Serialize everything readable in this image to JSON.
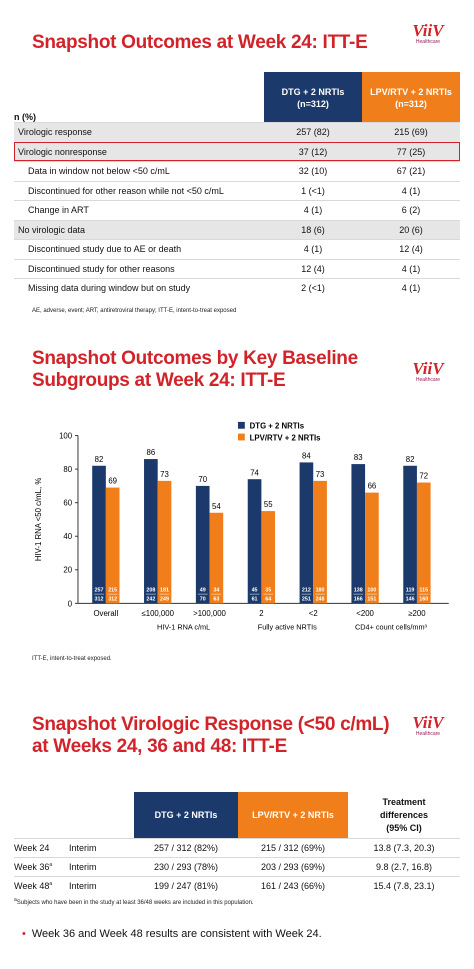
{
  "logo": {
    "mark": "ViiV",
    "sub": "Healthcare"
  },
  "slide1": {
    "title": "Snapshot Outcomes at Week 24: ITT-E",
    "n_label": "n (%)",
    "headers": {
      "dtg": "DTG + 2 NRTIs",
      "dtg_n": "(n=312)",
      "lpv": "LPV/RTV + 2 NRTIs",
      "lpv_n": "(n=312)"
    },
    "rows": [
      {
        "label": "Virologic response",
        "dtg": "257 (82)",
        "lpv": "215 (69)",
        "shade": true,
        "indent": false,
        "highlight": false
      },
      {
        "label": "Virologic nonresponse",
        "dtg": "37 (12)",
        "lpv": "77 (25)",
        "shade": true,
        "indent": false,
        "highlight": true
      },
      {
        "label": "Data in window not below <50 c/mL",
        "dtg": "32 (10)",
        "lpv": "67 (21)",
        "shade": false,
        "indent": true,
        "highlight": false
      },
      {
        "label": "Discontinued for other reason while not <50 c/mL",
        "dtg": "1 (<1)",
        "lpv": "4 (1)",
        "shade": false,
        "indent": true,
        "highlight": false
      },
      {
        "label": "Change in ART",
        "dtg": "4 (1)",
        "lpv": "6 (2)",
        "shade": false,
        "indent": true,
        "highlight": false
      },
      {
        "label": "No virologic data",
        "dtg": "18 (6)",
        "lpv": "20 (6)",
        "shade": true,
        "indent": false,
        "highlight": false
      },
      {
        "label": "Discontinued study due to AE or death",
        "dtg": "4 (1)",
        "lpv": "12 (4)",
        "shade": false,
        "indent": true,
        "highlight": false
      },
      {
        "label": "Discontinued study for other reasons",
        "dtg": "12 (4)",
        "lpv": "4 (1)",
        "shade": false,
        "indent": true,
        "highlight": false
      },
      {
        "label": "Missing data during window but on study",
        "dtg": "2 (<1)",
        "lpv": "4 (1)",
        "shade": false,
        "indent": true,
        "highlight": false
      }
    ],
    "footnote": "AE, adverse, event; ART, antiretroviral therapy; ITT-E, intent-to-treat exposed"
  },
  "slide2": {
    "title_line1": "Snapshot Outcomes by Key Baseline",
    "title_line2": "Subgroups at Week 24: ITT-E",
    "footnote": "ITT-E, intent-to-treat exposed."
  },
  "chart_data": {
    "type": "bar",
    "ylabel": "HIV-1 RNA <50 c/mL, %",
    "ylim": [
      0,
      100
    ],
    "yticks": [
      0,
      20,
      40,
      60,
      80,
      100
    ],
    "categories": [
      "Overall",
      "≤100,000",
      ">100,000",
      "2",
      "<2",
      "<200",
      "≥200"
    ],
    "groups": [
      {
        "label": "HIV-1 RNA c/mL",
        "from": 1,
        "to": 2
      },
      {
        "label": "Fully active NRTIs",
        "from": 3,
        "to": 4
      },
      {
        "label": "CD4+ count cells/mm³",
        "from": 5,
        "to": 6
      }
    ],
    "series": [
      {
        "name": "DTG + 2 NRTIs",
        "color": "#1b3a6b",
        "values": [
          82,
          86,
          70,
          74,
          84,
          83,
          82
        ],
        "fractions": [
          [
            "257",
            "312"
          ],
          [
            "208",
            "242"
          ],
          [
            "49",
            "70"
          ],
          [
            "45",
            "61"
          ],
          [
            "212",
            "251"
          ],
          [
            "138",
            "166"
          ],
          [
            "119",
            "146"
          ]
        ]
      },
      {
        "name": "LPV/RTV + 2 NRTIs",
        "color": "#f07f1b",
        "values": [
          69,
          73,
          54,
          55,
          73,
          66,
          72
        ],
        "fractions": [
          [
            "215",
            "312"
          ],
          [
            "181",
            "249"
          ],
          [
            "34",
            "63"
          ],
          [
            "35",
            "64"
          ],
          [
            "180",
            "248"
          ],
          [
            "100",
            "151"
          ],
          [
            "115",
            "160"
          ]
        ]
      }
    ],
    "legend": "top-right"
  },
  "slide3": {
    "title_line1": "Snapshot Virologic Response (<50 c/mL)",
    "title_line2": "at Weeks 24, 36 and 48: ITT-E",
    "headers": {
      "dtg": "DTG + 2 NRTIs",
      "lpv": "LPV/RTV + 2 NRTIs",
      "diff1": "Treatment",
      "diff2": "differences",
      "diff3": "(95% CI)"
    },
    "rows": [
      {
        "week": "Week 24",
        "sup": "",
        "analysis": "Interim",
        "dtg": "257 / 312 (82%)",
        "lpv": "215 / 312 (69%)",
        "diff": "13.8 (7.3, 20.3)"
      },
      {
        "week": "Week 36",
        "sup": "a",
        "analysis": "Interim",
        "dtg": "230 / 293 (78%)",
        "lpv": "203 / 293 (69%)",
        "diff": "9.8 (2.7, 16.8)"
      },
      {
        "week": "Week 48",
        "sup": "a",
        "analysis": "Interim",
        "dtg": "199 / 247 (81%)",
        "lpv": "161 / 243 (66%)",
        "diff": "15.4 (7.8, 23.1)"
      }
    ],
    "footnote_sup": "a",
    "footnote": "Subjects who have been in the study at least 36/48 weeks are included in this population.",
    "bullet": "Week 36 and Week 48 results are consistent with Week 24."
  }
}
